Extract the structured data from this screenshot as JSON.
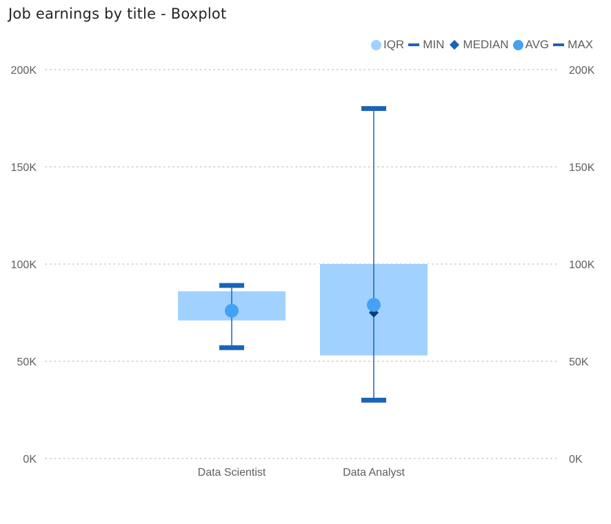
{
  "chart_data": {
    "type": "boxplot",
    "title": "Job earnings by title - Boxplot",
    "categories": [
      "Data Scientist",
      "Data Analyst"
    ],
    "series": [
      {
        "name": "IQR",
        "low": [
          71000,
          53000
        ],
        "high": [
          86000,
          100000
        ]
      },
      {
        "name": "MIN",
        "values": [
          57000,
          30000
        ]
      },
      {
        "name": "MEDIAN",
        "values": [
          77000,
          75000
        ]
      },
      {
        "name": "AVG",
        "values": [
          76000,
          79000
        ]
      },
      {
        "name": "MAX",
        "values": [
          89000,
          180000
        ]
      }
    ],
    "ylim": [
      0,
      200000
    ],
    "yticks": [
      0,
      50000,
      100000,
      150000,
      200000
    ],
    "ytick_labels": [
      "0K",
      "50K",
      "100K",
      "150K",
      "200K"
    ],
    "grid": true,
    "legend_position": "top-right",
    "colors": {
      "iqr": "#a0d1ff",
      "min_max": "#1a63b8",
      "median": "#0f3c7a",
      "avg": "#44a2f5",
      "whisker": "#1a63b8",
      "grid": "#c8c6c4"
    }
  },
  "legend": [
    {
      "label": "IQR",
      "shape": "circle",
      "color": "#a0d1ff"
    },
    {
      "label": "MIN",
      "shape": "dash",
      "color": "#1a63b8"
    },
    {
      "label": "MEDIAN",
      "shape": "diamond",
      "color": "#1a63b8"
    },
    {
      "label": "AVG",
      "shape": "circle",
      "color": "#44a2f5"
    },
    {
      "label": "MAX",
      "shape": "dash",
      "color": "#1a63b8"
    }
  ]
}
